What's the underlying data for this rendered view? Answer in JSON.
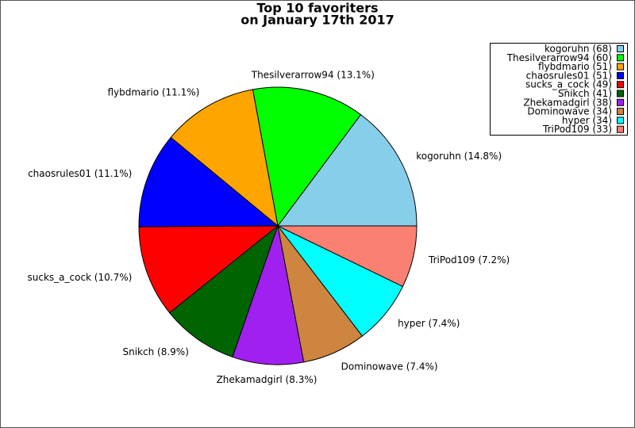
{
  "chart_data": {
    "type": "pie",
    "title_lines": [
      "Top 10 favoriters",
      "on January 17th 2017"
    ],
    "values": [
      68,
      60,
      51,
      51,
      49,
      41,
      38,
      34,
      34,
      33
    ],
    "value_labels": [
      "kogoruhn (14.8%)",
      "Thesilverarrow94 (13.1%)",
      "flybdmario (11.1%)",
      "chaosrules01 (11.1%)",
      "sucks_a_cock (10.7%)",
      "Snikch (8.9%)",
      "Zhekamadgirl (8.3%)",
      "Dominowave (7.4%)",
      "hyper (7.4%)",
      "TriPod109 (7.2%)"
    ],
    "legend_labels": [
      "kogoruhn (68)",
      "Thesilverarrow94 (60)",
      "flybdmario (51)",
      "chaosrules01 (51)",
      "sucks_a_cock (49)",
      "Snikch (41)",
      "Zhekamadgirl (38)",
      "Dominowave (34)",
      "hyper (34)",
      "TriPod109 (33)"
    ],
    "colors": [
      "#87ceeb",
      "#00ff00",
      "#ffa500",
      "#0000ff",
      "#ff0000",
      "#006400",
      "#a020f0",
      "#cd853f",
      "#00ffff",
      "#fa8072"
    ],
    "start_angle": 0,
    "direction": "counterclockwise",
    "legend": "top-right"
  }
}
